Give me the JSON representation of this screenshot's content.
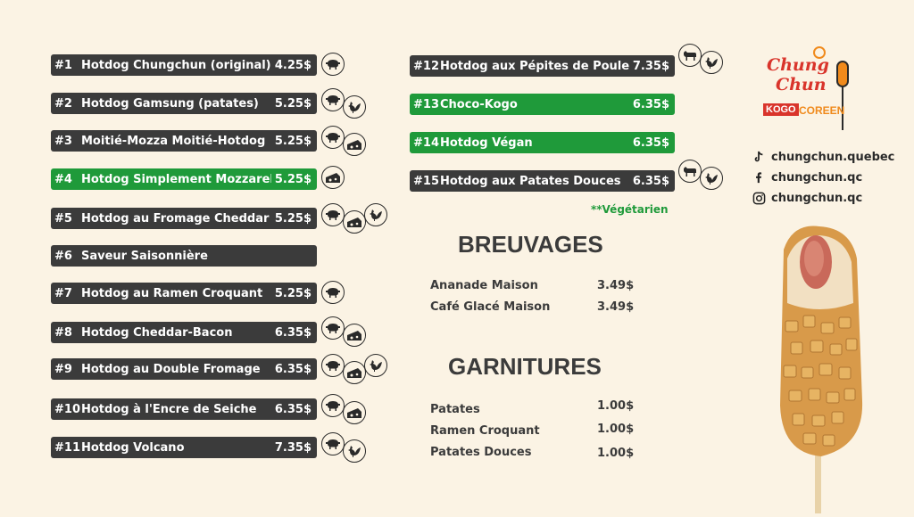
{
  "menu": [
    {
      "num": "#1",
      "name": "Hotdog Chungchun (original)",
      "price": "4.25$",
      "green": false,
      "icons": [
        "pig"
      ]
    },
    {
      "num": "#2",
      "name": "Hotdog Gamsung (patates)",
      "price": "5.25$",
      "green": false,
      "icons": [
        "pig",
        "rooster"
      ]
    },
    {
      "num": "#3",
      "name": "Moitié-Mozza Moitié-Hotdog",
      "price": "5.25$",
      "green": false,
      "icons": [
        "pig",
        "cheese"
      ]
    },
    {
      "num": "#4",
      "name": "Hotdog Simplement Mozzarella",
      "price": "5.25$",
      "green": true,
      "icons": [
        "cheese"
      ]
    },
    {
      "num": "#5",
      "name": "Hotdog au Fromage Cheddar",
      "price": "5.25$",
      "green": false,
      "icons": [
        "pig",
        "cheese",
        "rooster"
      ]
    },
    {
      "num": "#6",
      "name": "Saveur Saisonnière",
      "price": "",
      "green": false,
      "icons": []
    },
    {
      "num": "#7",
      "name": "Hotdog au Ramen Croquant",
      "price": "5.25$",
      "green": false,
      "icons": [
        "pig"
      ]
    },
    {
      "num": "#8",
      "name": "Hotdog Cheddar-Bacon",
      "price": "6.35$",
      "green": false,
      "icons": [
        "pig",
        "cheese"
      ]
    },
    {
      "num": "#9",
      "name": "Hotdog au Double Fromage",
      "price": "6.35$",
      "green": false,
      "icons": [
        "pig",
        "cheese",
        "rooster"
      ]
    },
    {
      "num": "#10",
      "name": "Hotdog à l'Encre de Seiche",
      "price": "6.35$",
      "green": false,
      "icons": [
        "pig",
        "cheese"
      ]
    },
    {
      "num": "#11",
      "name": "Hotdog Volcano",
      "price": "7.35$",
      "green": false,
      "icons": [
        "pig",
        "rooster"
      ]
    },
    {
      "num": "#12",
      "name": "Hotdog aux Pépites de Poulet",
      "price": "7.35$",
      "green": false,
      "icons": [
        "cow",
        "rooster"
      ]
    },
    {
      "num": "#13",
      "name": "Choco-Kogo",
      "price": "6.35$",
      "green": true,
      "icons": []
    },
    {
      "num": "#14",
      "name": "Hotdog Végan",
      "price": "6.35$",
      "green": true,
      "icons": []
    },
    {
      "num": "#15",
      "name": "Hotdog aux Patates Douces",
      "price": "6.35$",
      "green": false,
      "icons": [
        "cow",
        "rooster"
      ]
    }
  ],
  "vegetarian_note": "**Végétarien",
  "breuvages": {
    "title": "BREUVAGES",
    "items": [
      {
        "name": "Ananade Maison",
        "price": "3.49$"
      },
      {
        "name": "Café Glacé Maison",
        "price": "3.49$"
      }
    ]
  },
  "garnitures": {
    "title": "GARNITURES",
    "items": [
      {
        "name": "Patates",
        "price": "1.00$"
      },
      {
        "name": "Ramen Croquant",
        "price": "1.00$"
      },
      {
        "name": "Patates Douces",
        "price": "1.00$"
      }
    ]
  },
  "logo": {
    "line1": "Chung",
    "line2": "Chun",
    "kogo": "KOGO",
    "coreen": "COREEN"
  },
  "social": [
    {
      "icon": "tiktok-icon",
      "handle": "chungchun.quebec"
    },
    {
      "icon": "facebook-icon",
      "handle": "chungchun.qc"
    },
    {
      "icon": "instagram-icon",
      "handle": "chungchun.qc"
    }
  ],
  "colors": {
    "background": "#fbf3e4",
    "dark_bar": "#3b3b3b",
    "green_bar": "#1f9a3a",
    "logo_red": "#d9342b",
    "logo_orange": "#f08a1c"
  }
}
